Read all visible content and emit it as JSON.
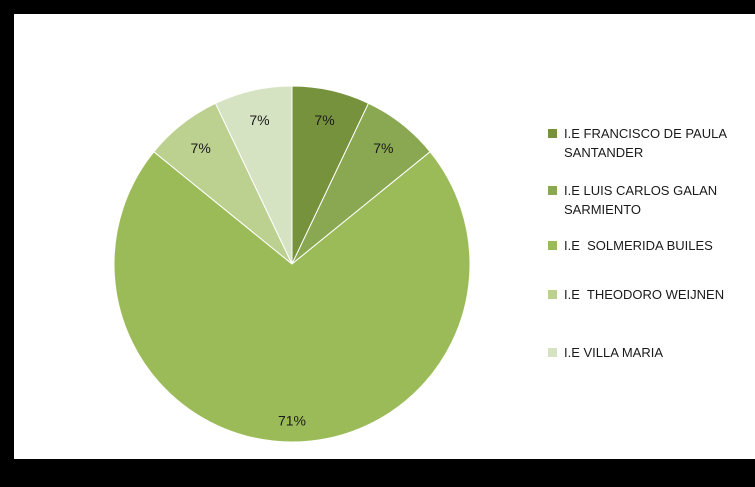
{
  "chart_data": {
    "type": "pie",
    "categories": [
      "I.E FRANCISCO DE PAULA SANTANDER",
      "I.E LUIS CARLOS GALAN SARMIENTO",
      "I.E  SOLMERIDA BUILES",
      "I.E  THEODORO WEIJNEN",
      "I.E VILLA MARIA"
    ],
    "values": [
      7,
      7,
      71,
      7,
      7
    ],
    "data_labels": [
      "7%",
      "7%",
      "71%",
      "7%",
      "7%"
    ],
    "colors": [
      "#76923c",
      "#8aa851",
      "#9bbb59",
      "#bcd08f",
      "#d6e3c3"
    ],
    "legend_position": "right"
  }
}
